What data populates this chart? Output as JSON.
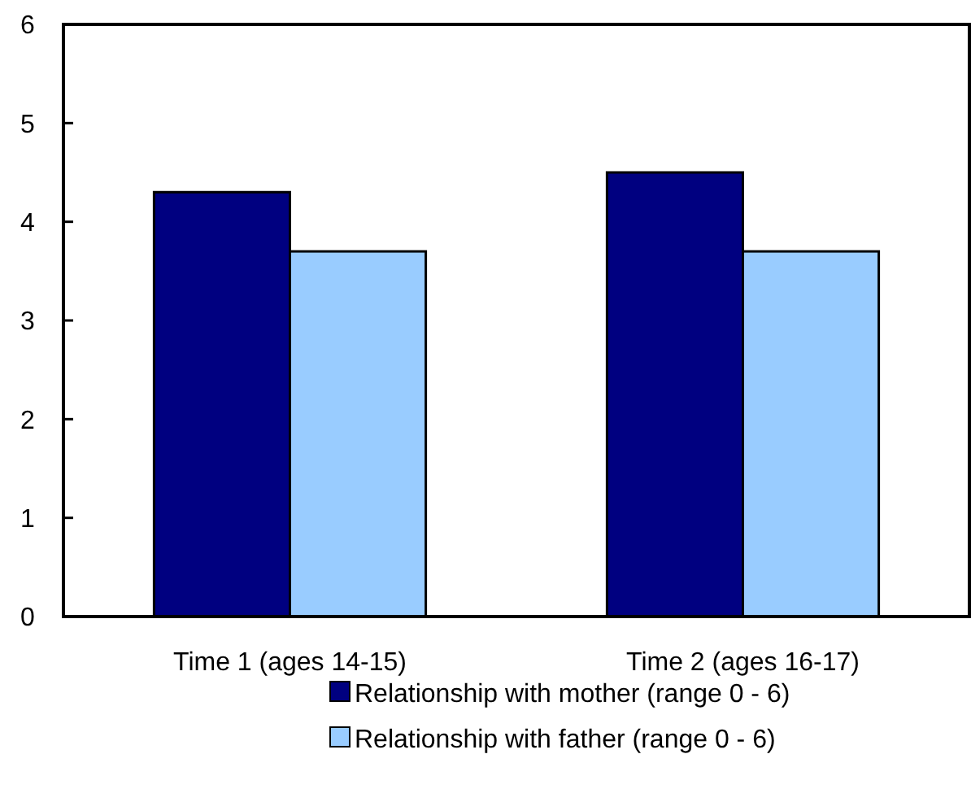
{
  "chart_data": {
    "type": "bar",
    "categories": [
      "Time 1 (ages 14-15)",
      "Time 2 (ages 16-17)"
    ],
    "series": [
      {
        "name": "Relationship with mother (range 0 - 6)",
        "color": "#000080",
        "values": [
          4.3,
          4.5
        ]
      },
      {
        "name": "Relationship with father (range 0 - 6)",
        "color": "#99ccff",
        "values": [
          3.7,
          3.7
        ]
      }
    ],
    "ylim": [
      0,
      6
    ],
    "yticks": [
      0,
      1,
      2,
      3,
      4,
      5,
      6
    ],
    "grid": false,
    "legend": "bottom"
  }
}
